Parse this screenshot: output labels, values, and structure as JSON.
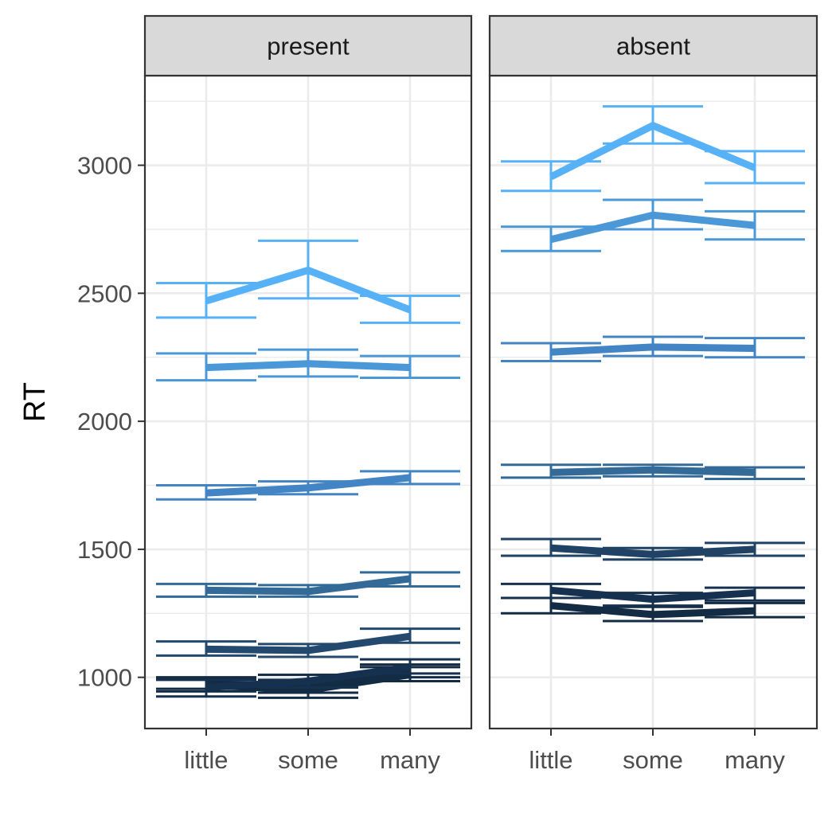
{
  "chart_data": {
    "type": "line",
    "title": "",
    "xlabel": "",
    "ylabel": "RT",
    "ylim": [
      800,
      3350
    ],
    "y_ticks": [
      1000,
      1500,
      2000,
      2500,
      3000
    ],
    "categories": [
      "little",
      "some",
      "many"
    ],
    "grid": true,
    "legend": "none",
    "error_bars": true,
    "colors": [
      "#132b43",
      "#1a3955",
      "#234a6e",
      "#336a98",
      "#4384c4",
      "#4b98d8",
      "#56b1f7"
    ],
    "facets": [
      {
        "label": "present",
        "series": [
          {
            "values": [
              970,
              950,
              1010
            ],
            "err_low": [
              945,
              920,
              985
            ],
            "err_high": [
              995,
              985,
              1040
            ],
            "color": "#132b43",
            "width": 1.0
          },
          {
            "values": [
              975,
              965,
              1025
            ],
            "err_low": [
              955,
              940,
              1000
            ],
            "err_high": [
              1000,
              990,
              1050
            ],
            "color": "#132b43",
            "width": 1.0
          },
          {
            "values": [
              960,
              985,
              1040
            ],
            "err_low": [
              925,
              960,
              1015
            ],
            "err_high": [
              990,
              1010,
              1070
            ],
            "color": "#163150",
            "width": 1.0
          },
          {
            "values": [
              1110,
              1105,
              1160
            ],
            "err_low": [
              1085,
              1080,
              1135
            ],
            "err_high": [
              1140,
              1130,
              1190
            ],
            "color": "#234a6e",
            "width": 1.0
          },
          {
            "values": [
              1340,
              1335,
              1385
            ],
            "err_low": [
              1315,
              1315,
              1355
            ],
            "err_high": [
              1365,
              1360,
              1410
            ],
            "color": "#336a98",
            "width": 1.0
          },
          {
            "values": [
              1720,
              1740,
              1780
            ],
            "err_low": [
              1695,
              1715,
              1755
            ],
            "err_high": [
              1750,
              1765,
              1805
            ],
            "color": "#4384c4",
            "width": 1.0
          },
          {
            "values": [
              2210,
              2225,
              2210
            ],
            "err_low": [
              2160,
              2175,
              2170
            ],
            "err_high": [
              2265,
              2280,
              2255
            ],
            "color": "#4b98d8",
            "width": 1.0
          },
          {
            "values": [
              2470,
              2590,
              2435
            ],
            "err_low": [
              2405,
              2480,
              2385
            ],
            "err_high": [
              2540,
              2705,
              2490
            ],
            "color": "#56b1f7",
            "width": 1.0
          }
        ]
      },
      {
        "label": "absent",
        "series": [
          {
            "values": [
              1280,
              1245,
              1260
            ],
            "err_low": [
              1250,
              1220,
              1235
            ],
            "err_high": [
              1310,
              1275,
              1290
            ],
            "color": "#132b43",
            "width": 1.0
          },
          {
            "values": [
              1340,
              1305,
              1330
            ],
            "err_low": [
              1310,
              1280,
              1300
            ],
            "err_high": [
              1365,
              1330,
              1350
            ],
            "color": "#163150",
            "width": 1.0
          },
          {
            "values": [
              1505,
              1480,
              1500
            ],
            "err_low": [
              1475,
              1460,
              1475
            ],
            "err_high": [
              1540,
              1505,
              1525
            ],
            "color": "#1f4265",
            "width": 1.0
          },
          {
            "values": [
              1800,
              1810,
              1800
            ],
            "err_low": [
              1780,
              1785,
              1775
            ],
            "err_high": [
              1830,
              1830,
              1820
            ],
            "color": "#336a98",
            "width": 1.0
          },
          {
            "values": [
              2270,
              2290,
              2285
            ],
            "err_low": [
              2235,
              2255,
              2250
            ],
            "err_high": [
              2305,
              2330,
              2325
            ],
            "color": "#4384c4",
            "width": 1.0
          },
          {
            "values": [
              2710,
              2805,
              2765
            ],
            "err_low": [
              2665,
              2750,
              2710
            ],
            "err_high": [
              2760,
              2865,
              2820
            ],
            "color": "#4b98d8",
            "width": 1.0
          },
          {
            "values": [
              2955,
              3155,
              2990
            ],
            "err_low": [
              2900,
              3085,
              2930
            ],
            "err_high": [
              3015,
              3230,
              3055
            ],
            "color": "#56b1f7",
            "width": 1.0
          }
        ]
      }
    ]
  }
}
